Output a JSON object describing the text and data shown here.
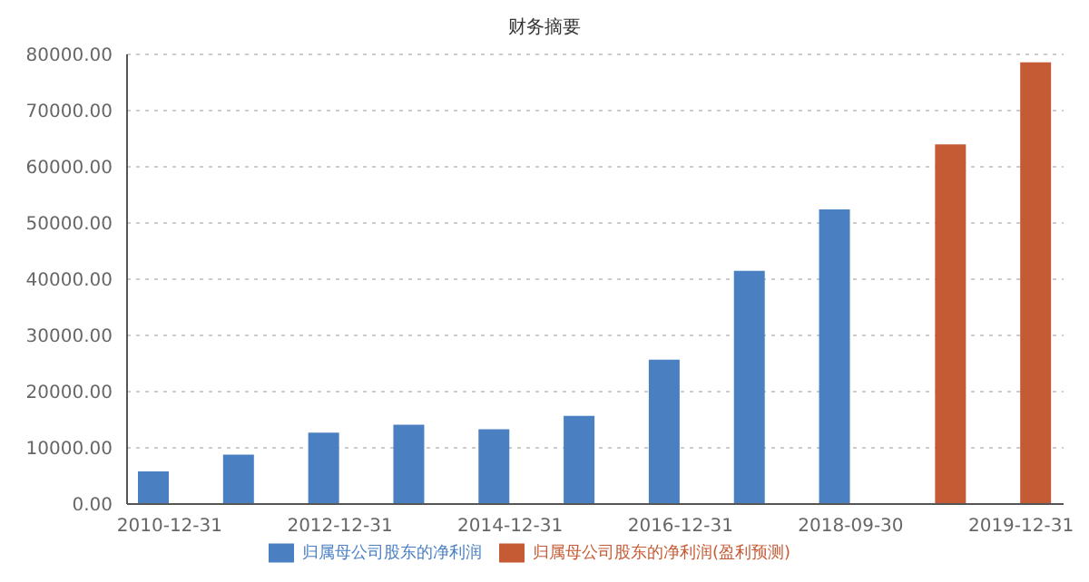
{
  "chart_data": {
    "type": "bar",
    "title": "财务摘要",
    "categories": [
      "2010-12-31",
      null,
      "2012-12-31",
      null,
      "2014-12-31",
      null,
      "2016-12-31",
      null,
      "2018-09-30",
      null,
      "2019-12-31"
    ],
    "series": [
      {
        "name": "归属母公司股东的净利润",
        "color": "#4a80c2",
        "values": [
          5800,
          8800,
          12700,
          14100,
          13300,
          15700,
          25700,
          41500,
          52400,
          null,
          null
        ]
      },
      {
        "name": "归属母公司股东的净利润(盈利预测)",
        "color": "#c55b35",
        "values": [
          null,
          null,
          null,
          null,
          null,
          null,
          null,
          null,
          null,
          64000,
          78600
        ]
      }
    ],
    "ylim": [
      0,
      80000
    ],
    "yticks": [
      {
        "value": 0,
        "label": "0.00"
      },
      {
        "value": 10000,
        "label": "10000.00"
      },
      {
        "value": 20000,
        "label": "20000.00"
      },
      {
        "value": 30000,
        "label": "30000.00"
      },
      {
        "value": 40000,
        "label": "40000.00"
      },
      {
        "value": 50000,
        "label": "50000.00"
      },
      {
        "value": 60000,
        "label": "60000.00"
      },
      {
        "value": 70000,
        "label": "70000.00"
      },
      {
        "value": 80000,
        "label": "80000.00"
      }
    ],
    "grid": "y",
    "legend": "bottom"
  }
}
